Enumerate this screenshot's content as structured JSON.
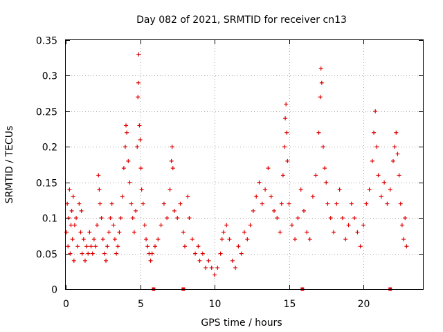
{
  "chart_data": {
    "type": "scatter",
    "title": "Day 082 of 2021, SRMTID for receiver cn13",
    "xlabel": "GPS time / hours",
    "ylabel": "SRMTID / TECUs",
    "xlim": [
      0,
      24
    ],
    "ylim": [
      0,
      0.35
    ],
    "xticks": [
      0,
      5,
      10,
      15,
      20
    ],
    "xtick_labels": [
      "0",
      "5",
      "10",
      "15",
      "20"
    ],
    "yticks": [
      0,
      0.05,
      0.1,
      0.15,
      0.2,
      0.25,
      0.3,
      0.35
    ],
    "ytick_labels": [
      "0",
      "0.05",
      "0.1",
      "0.15",
      "0.2",
      "0.25",
      "0.3",
      "0.35"
    ],
    "grid": true,
    "marker": "+",
    "colors": {
      "series": "#e00000"
    },
    "series": [
      {
        "name": "SRMTID",
        "color": "#e00000",
        "points": [
          [
            0.05,
            0.08
          ],
          [
            0.1,
            0.12
          ],
          [
            0.15,
            0.06
          ],
          [
            0.2,
            0.1
          ],
          [
            0.25,
            0.14
          ],
          [
            0.3,
            0.05
          ],
          [
            0.35,
            0.09
          ],
          [
            0.4,
            0.11
          ],
          [
            0.45,
            0.07
          ],
          [
            0.5,
            0.13
          ],
          [
            0.55,
            0.04
          ],
          [
            0.6,
            0.09
          ],
          [
            0.7,
            0.1
          ],
          [
            0.8,
            0.06
          ],
          [
            0.9,
            0.12
          ],
          [
            1.0,
            0.08
          ],
          [
            1.05,
            0.11
          ],
          [
            1.1,
            0.05
          ],
          [
            1.2,
            0.07
          ],
          [
            1.3,
            0.04
          ],
          [
            1.4,
            0.06
          ],
          [
            1.5,
            0.05
          ],
          [
            1.6,
            0.08
          ],
          [
            1.7,
            0.06
          ],
          [
            1.8,
            0.05
          ],
          [
            1.9,
            0.07
          ],
          [
            2.0,
            0.06
          ],
          [
            2.1,
            0.09
          ],
          [
            2.2,
            0.16
          ],
          [
            2.25,
            0.14
          ],
          [
            2.3,
            0.12
          ],
          [
            2.4,
            0.1
          ],
          [
            2.5,
            0.07
          ],
          [
            2.6,
            0.05
          ],
          [
            2.7,
            0.04
          ],
          [
            2.8,
            0.06
          ],
          [
            2.9,
            0.08
          ],
          [
            3.0,
            0.1
          ],
          [
            3.1,
            0.12
          ],
          [
            3.2,
            0.09
          ],
          [
            3.3,
            0.07
          ],
          [
            3.4,
            0.05
          ],
          [
            3.5,
            0.06
          ],
          [
            3.6,
            0.08
          ],
          [
            3.7,
            0.1
          ],
          [
            3.8,
            0.13
          ],
          [
            3.9,
            0.17
          ],
          [
            4.0,
            0.2
          ],
          [
            4.05,
            0.23
          ],
          [
            4.1,
            0.22
          ],
          [
            4.2,
            0.18
          ],
          [
            4.3,
            0.15
          ],
          [
            4.4,
            0.12
          ],
          [
            4.5,
            0.1
          ],
          [
            4.6,
            0.08
          ],
          [
            4.7,
            0.11
          ],
          [
            4.8,
            0.2
          ],
          [
            4.85,
            0.27
          ],
          [
            4.88,
            0.29
          ],
          [
            4.9,
            0.33
          ],
          [
            4.95,
            0.23
          ],
          [
            5.0,
            0.21
          ],
          [
            5.05,
            0.17
          ],
          [
            5.1,
            0.14
          ],
          [
            5.2,
            0.12
          ],
          [
            5.3,
            0.09
          ],
          [
            5.4,
            0.07
          ],
          [
            5.5,
            0.06
          ],
          [
            5.6,
            0.05
          ],
          [
            5.7,
            0.04
          ],
          [
            5.8,
            0.05
          ],
          [
            6.0,
            0.06
          ],
          [
            6.2,
            0.07
          ],
          [
            6.4,
            0.09
          ],
          [
            6.6,
            0.12
          ],
          [
            6.8,
            0.1
          ],
          [
            7.0,
            0.14
          ],
          [
            7.1,
            0.18
          ],
          [
            7.15,
            0.2
          ],
          [
            7.2,
            0.17
          ],
          [
            7.3,
            0.11
          ],
          [
            7.5,
            0.1
          ],
          [
            7.7,
            0.12
          ],
          [
            7.9,
            0.08
          ],
          [
            8.0,
            0.06
          ],
          [
            8.2,
            0.13
          ],
          [
            8.3,
            0.1
          ],
          [
            8.5,
            0.07
          ],
          [
            8.7,
            0.05
          ],
          [
            8.9,
            0.06
          ],
          [
            9.0,
            0.04
          ],
          [
            9.2,
            0.05
          ],
          [
            9.4,
            0.03
          ],
          [
            9.6,
            0.04
          ],
          [
            9.8,
            0.03
          ],
          [
            10.0,
            0.02
          ],
          [
            10.2,
            0.03
          ],
          [
            10.4,
            0.05
          ],
          [
            10.5,
            0.07
          ],
          [
            10.6,
            0.08
          ],
          [
            10.8,
            0.09
          ],
          [
            11.0,
            0.07
          ],
          [
            11.2,
            0.04
          ],
          [
            11.4,
            0.03
          ],
          [
            11.6,
            0.06
          ],
          [
            11.8,
            0.05
          ],
          [
            12.0,
            0.08
          ],
          [
            12.2,
            0.07
          ],
          [
            12.4,
            0.09
          ],
          [
            12.6,
            0.11
          ],
          [
            12.8,
            0.13
          ],
          [
            13.0,
            0.15
          ],
          [
            13.2,
            0.12
          ],
          [
            13.4,
            0.14
          ],
          [
            13.6,
            0.17
          ],
          [
            13.8,
            0.13
          ],
          [
            14.0,
            0.11
          ],
          [
            14.2,
            0.1
          ],
          [
            14.4,
            0.08
          ],
          [
            14.5,
            0.12
          ],
          [
            14.6,
            0.16
          ],
          [
            14.7,
            0.2
          ],
          [
            14.75,
            0.24
          ],
          [
            14.8,
            0.26
          ],
          [
            14.85,
            0.22
          ],
          [
            14.9,
            0.18
          ],
          [
            15.0,
            0.12
          ],
          [
            15.2,
            0.09
          ],
          [
            15.4,
            0.07
          ],
          [
            15.6,
            0.1
          ],
          [
            15.8,
            0.14
          ],
          [
            16.0,
            0.11
          ],
          [
            16.2,
            0.08
          ],
          [
            16.4,
            0.07
          ],
          [
            16.6,
            0.13
          ],
          [
            16.8,
            0.16
          ],
          [
            17.0,
            0.22
          ],
          [
            17.1,
            0.27
          ],
          [
            17.15,
            0.31
          ],
          [
            17.2,
            0.29
          ],
          [
            17.3,
            0.2
          ],
          [
            17.4,
            0.17
          ],
          [
            17.5,
            0.15
          ],
          [
            17.6,
            0.12
          ],
          [
            17.8,
            0.1
          ],
          [
            18.0,
            0.08
          ],
          [
            18.2,
            0.12
          ],
          [
            18.4,
            0.14
          ],
          [
            18.6,
            0.1
          ],
          [
            18.8,
            0.07
          ],
          [
            19.0,
            0.09
          ],
          [
            19.2,
            0.12
          ],
          [
            19.4,
            0.1
          ],
          [
            19.6,
            0.08
          ],
          [
            19.8,
            0.06
          ],
          [
            20.0,
            0.09
          ],
          [
            20.2,
            0.12
          ],
          [
            20.4,
            0.14
          ],
          [
            20.6,
            0.18
          ],
          [
            20.7,
            0.22
          ],
          [
            20.8,
            0.25
          ],
          [
            20.9,
            0.2
          ],
          [
            21.0,
            0.16
          ],
          [
            21.2,
            0.13
          ],
          [
            21.4,
            0.15
          ],
          [
            21.6,
            0.12
          ],
          [
            21.8,
            0.14
          ],
          [
            22.0,
            0.18
          ],
          [
            22.1,
            0.2
          ],
          [
            22.2,
            0.22
          ],
          [
            22.3,
            0.19
          ],
          [
            22.4,
            0.16
          ],
          [
            22.5,
            0.12
          ],
          [
            22.6,
            0.09
          ],
          [
            22.7,
            0.07
          ],
          [
            22.8,
            0.1
          ],
          [
            22.9,
            0.06
          ]
        ]
      }
    ],
    "markers_on_axis": [
      5.9,
      7.9,
      15.9,
      21.8
    ]
  }
}
